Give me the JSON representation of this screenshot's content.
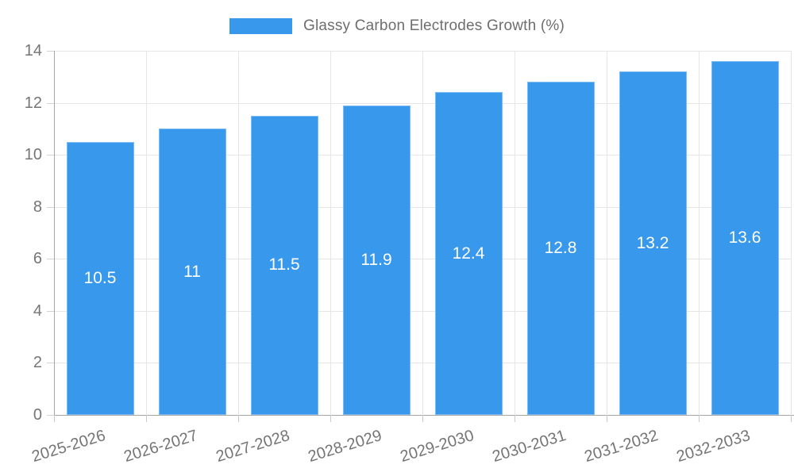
{
  "legend": {
    "label": "Glassy Carbon Electrodes Growth (%)",
    "swatch_color": "#3898ec"
  },
  "chart_data": {
    "type": "bar",
    "title": "",
    "legend_entries": [
      "Glassy Carbon Electrodes Growth (%)"
    ],
    "legend_position": "top",
    "categories": [
      "2025-2026",
      "2026-2027",
      "2027-2028",
      "2028-2029",
      "2029-2030",
      "2030-2031",
      "2031-2032",
      "2032-2033"
    ],
    "values": [
      10.5,
      11,
      11.5,
      11.9,
      12.4,
      12.8,
      13.2,
      13.6
    ],
    "value_labels": [
      "10.5",
      "11",
      "11.5",
      "11.9",
      "12.4",
      "12.8",
      "13.2",
      "13.6"
    ],
    "xlabel": "",
    "ylabel": "",
    "ylim": [
      0,
      14
    ],
    "ytick_step": 2,
    "ytick_labels": [
      "0",
      "2",
      "4",
      "6",
      "8",
      "10",
      "12",
      "14"
    ],
    "grid": true,
    "colors": {
      "bar": "#3898ec",
      "value_label": "#ffffff",
      "axis_text": "#757575",
      "gridline": "#e6e6e6",
      "axis_line": "#a6a6a6"
    }
  }
}
